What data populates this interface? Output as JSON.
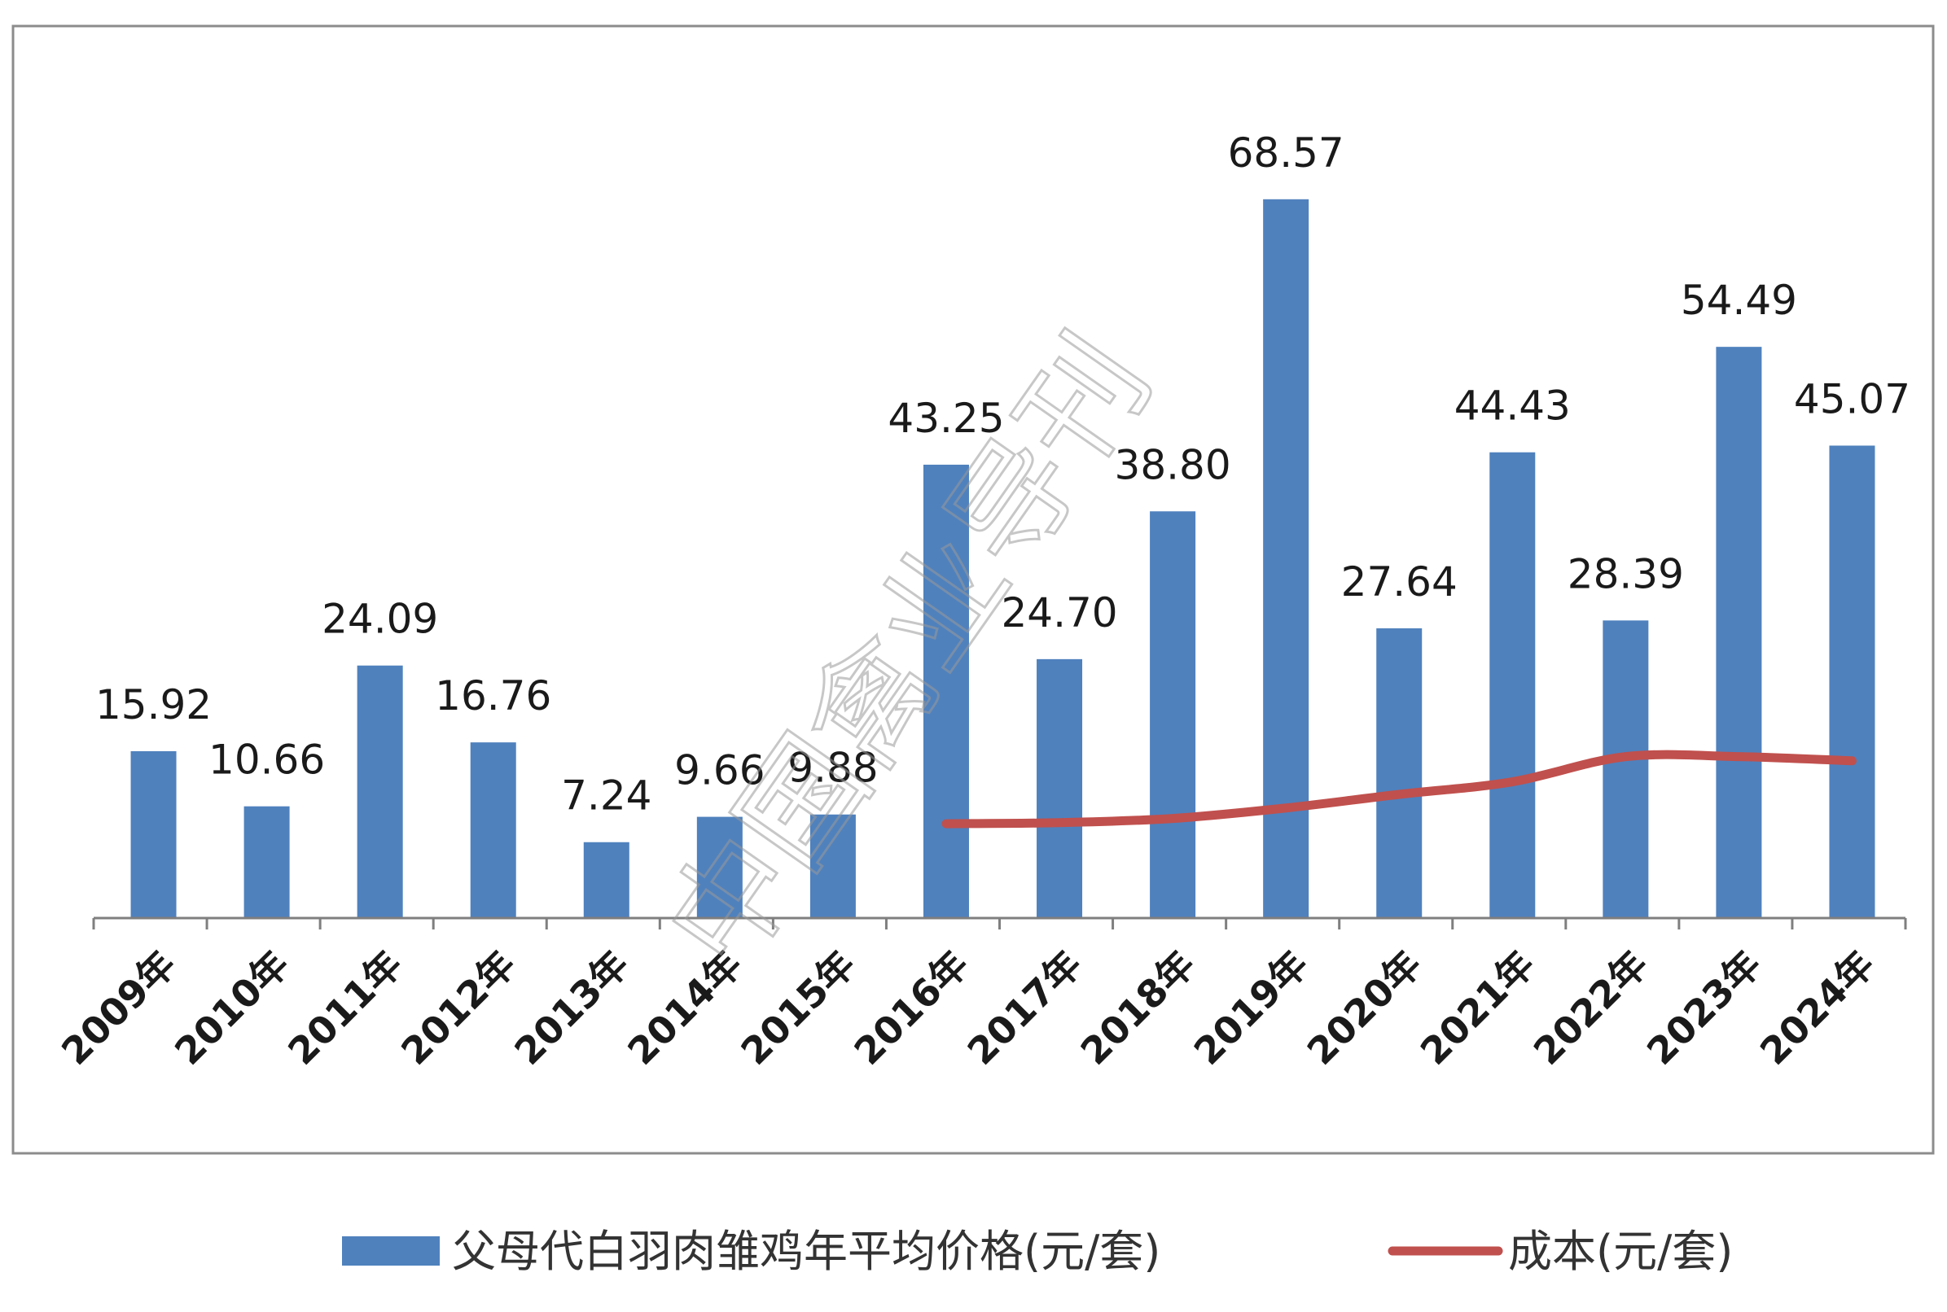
{
  "chart_data": {
    "type": "bar",
    "categories": [
      "2009年",
      "2010年",
      "2011年",
      "2012年",
      "2013年",
      "2014年",
      "2015年",
      "2016年",
      "2017年",
      "2018年",
      "2019年",
      "2020年",
      "2021年",
      "2022年",
      "2023年",
      "2024年"
    ],
    "series": [
      {
        "name": "父母代白羽肉雏鸡年平均价格(元/套)",
        "type": "bar",
        "color": "#4f81bd",
        "values": [
          15.92,
          10.66,
          24.09,
          16.76,
          7.24,
          9.66,
          9.88,
          43.25,
          24.7,
          38.8,
          68.57,
          27.64,
          44.43,
          28.39,
          54.49,
          45.07
        ],
        "labels": [
          "15.92",
          "10.66",
          "24.09",
          "16.76",
          "7.24",
          "9.66",
          "9.88",
          "43.25",
          "24.70",
          "38.80",
          "68.57",
          "27.64",
          "44.43",
          "28.39",
          "54.49",
          "45.07"
        ]
      },
      {
        "name": "成本(元/套)",
        "type": "line",
        "color": "#c0504d",
        "start_index": 7,
        "values": [
          null,
          null,
          null,
          null,
          null,
          null,
          null,
          9.0,
          9.1,
          9.5,
          10.5,
          11.8,
          13.0,
          15.4,
          15.4,
          15.0
        ]
      }
    ],
    "ylim": [
      0,
      75
    ],
    "grid": false,
    "legend_position": "bottom",
    "title": "",
    "xlabel": "",
    "ylabel": ""
  },
  "watermark": "中国禽业导刊"
}
